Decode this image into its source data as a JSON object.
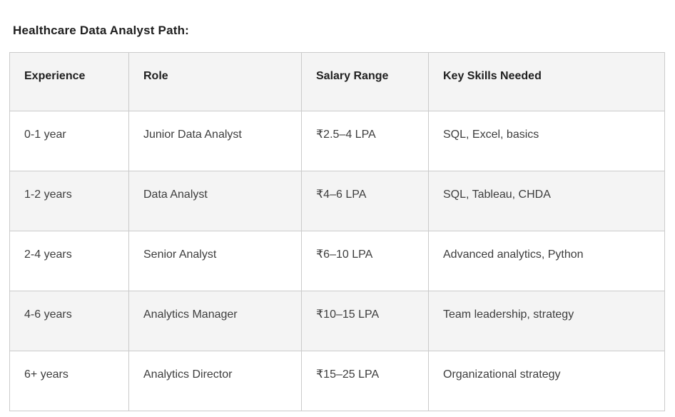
{
  "title": "Healthcare Data Analyst Path:",
  "colors": {
    "page_background": "#ffffff",
    "table_border": "#cbcbcb",
    "header_background": "#f4f4f4",
    "stripe_background": "#f4f4f4",
    "title_text": "#1e1e1e",
    "body_text": "#3d3d3d"
  },
  "table": {
    "columns": [
      "Experience",
      "Role",
      "Salary Range",
      "Key Skills Needed"
    ],
    "rows": [
      {
        "experience": "0-1 year",
        "role": "Junior Data Analyst",
        "salary": "₹2.5–4 LPA",
        "skills": "SQL, Excel, basics"
      },
      {
        "experience": "1-2 years",
        "role": "Data Analyst",
        "salary": "₹4–6 LPA",
        "skills": "SQL, Tableau, CHDA"
      },
      {
        "experience": "2-4 years",
        "role": "Senior Analyst",
        "salary": "₹6–10 LPA",
        "skills": "Advanced analytics, Python"
      },
      {
        "experience": "4-6 years",
        "role": "Analytics Manager",
        "salary": "₹10–15 LPA",
        "skills": "Team leadership, strategy"
      },
      {
        "experience": "6+ years",
        "role": "Analytics Director",
        "salary": "₹15–25 LPA",
        "skills": "Organizational strategy"
      }
    ]
  }
}
